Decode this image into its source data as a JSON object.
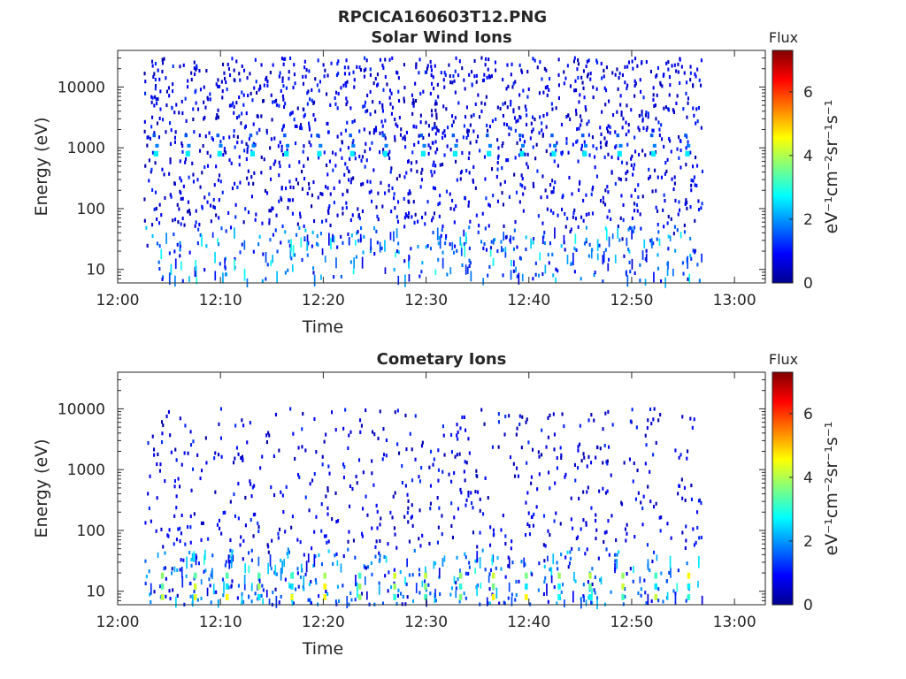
{
  "figure": {
    "title": "RPCICA160603T12.PNG"
  },
  "colormap": "jet",
  "chart_data": [
    {
      "type": "heatmap",
      "title": "Solar Wind Ions",
      "xlabel": "Time",
      "ylabel": "Energy (eV)",
      "x_tick_labels": [
        "12:00",
        "12:10",
        "12:20",
        "12:30",
        "12:40",
        "12:50",
        "13:00"
      ],
      "x_tick_minutes": [
        0,
        10,
        20,
        30,
        40,
        50,
        60
      ],
      "xlim_minutes": [
        0,
        63
      ],
      "y_scale": "log",
      "ylim": [
        6,
        40000
      ],
      "y_tick_values": [
        10,
        100,
        1000,
        10000
      ],
      "y_tick_labels": [
        "10",
        "100",
        "1000",
        "10000"
      ],
      "data_time_range_minutes": [
        2.5,
        56.8
      ],
      "colorbar": {
        "title": "Flux",
        "label": "eV⁻¹cm⁻²sr⁻¹s⁻¹",
        "range": [
          0,
          7.3
        ],
        "tick_values": [
          0,
          2,
          4,
          6
        ],
        "tick_labels": [
          "0",
          "2",
          "4",
          "6"
        ]
      },
      "features": [
        {
          "description": "periodic solar wind peak",
          "energy_eV": 800,
          "flux": 2.6,
          "times_minutes": [
            3.5,
            6.6,
            9.7,
            12.9,
            16.2,
            19.4,
            22.6,
            25.8,
            29.5,
            32.6,
            35.9,
            39.1,
            42.2,
            45.2,
            48.6,
            51.9,
            55.2
          ]
        },
        {
          "description": "low-energy streaks",
          "energy_range_eV": [
            6,
            40
          ],
          "flux_range": [
            1.2,
            3.2
          ]
        }
      ]
    },
    {
      "type": "heatmap",
      "title": "Cometary Ions",
      "xlabel": "Time",
      "ylabel": "Energy (eV)",
      "x_tick_labels": [
        "12:00",
        "12:10",
        "12:20",
        "12:30",
        "12:40",
        "12:50",
        "13:00"
      ],
      "x_tick_minutes": [
        0,
        10,
        20,
        30,
        40,
        50,
        60
      ],
      "xlim_minutes": [
        0,
        63
      ],
      "y_scale": "log",
      "ylim": [
        6,
        40000
      ],
      "y_tick_values": [
        10,
        100,
        1000,
        10000
      ],
      "y_tick_labels": [
        "10",
        "100",
        "1000",
        "10000"
      ],
      "data_time_range_minutes": [
        2.5,
        56.8
      ],
      "colorbar": {
        "title": "Flux",
        "label": "eV⁻¹cm⁻²sr⁻¹s⁻¹",
        "range": [
          0,
          7.3
        ],
        "tick_values": [
          0,
          2,
          4,
          6
        ],
        "tick_labels": [
          "0",
          "2",
          "4",
          "6"
        ]
      },
      "features": [
        {
          "description": "periodic low-energy cometary ion bursts",
          "energy_range_eV": [
            8,
            18
          ],
          "flux_range": [
            2.5,
            4.8
          ],
          "times_minutes": [
            4.2,
            7.4,
            10.5,
            13.6,
            16.8,
            20.0,
            23.4,
            26.8,
            29.8,
            33.2,
            36.4,
            39.6,
            42.8,
            45.8,
            49.0,
            52.2,
            55.4
          ]
        }
      ]
    }
  ]
}
